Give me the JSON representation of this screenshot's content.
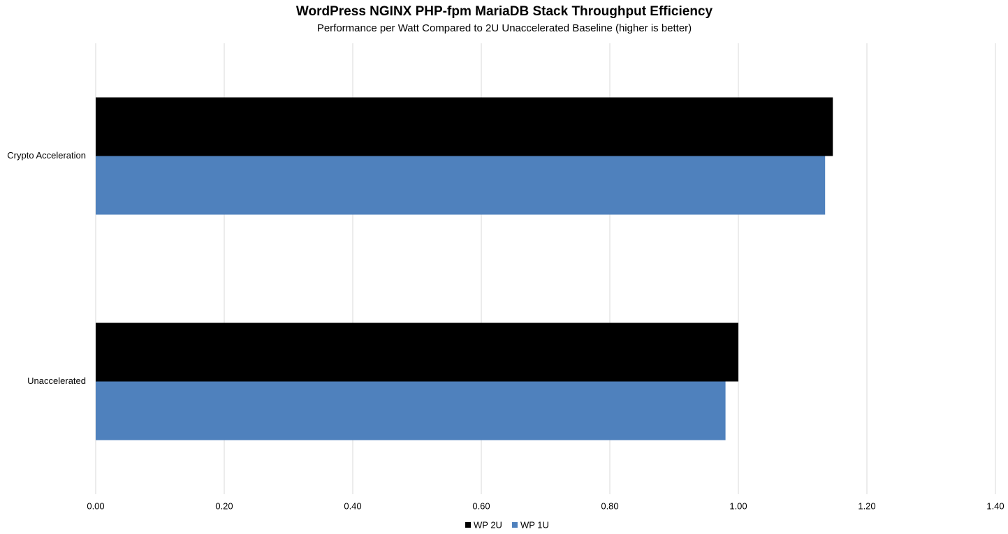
{
  "chart_data": {
    "type": "bar",
    "orientation": "horizontal",
    "title": "WordPress NGINX PHP-fpm MariaDB Stack Throughput Efficiency",
    "subtitle": "Performance per Watt Compared to 2U Unaccelerated Baseline (higher is better)",
    "categories": [
      "Crypto Acceleration",
      "Unaccelerated"
    ],
    "series": [
      {
        "name": "WP 2U",
        "color": "#000000",
        "values": [
          1.147,
          1.0
        ]
      },
      {
        "name": "WP 1U",
        "color": "#4f81bd",
        "values": [
          1.135,
          0.98
        ]
      }
    ],
    "xlim": [
      0,
      1.4
    ],
    "xticks": [
      {
        "value": 0,
        "label": "0.00"
      },
      {
        "value": 0.2,
        "label": "0.20"
      },
      {
        "value": 0.4,
        "label": "0.40"
      },
      {
        "value": 0.6,
        "label": "0.60"
      },
      {
        "value": 0.8,
        "label": "0.80"
      },
      {
        "value": 1.0,
        "label": "1.00"
      },
      {
        "value": 1.2,
        "label": "1.20"
      },
      {
        "value": 1.4,
        "label": "1.40"
      }
    ],
    "grid": true,
    "legend": "bottom"
  }
}
